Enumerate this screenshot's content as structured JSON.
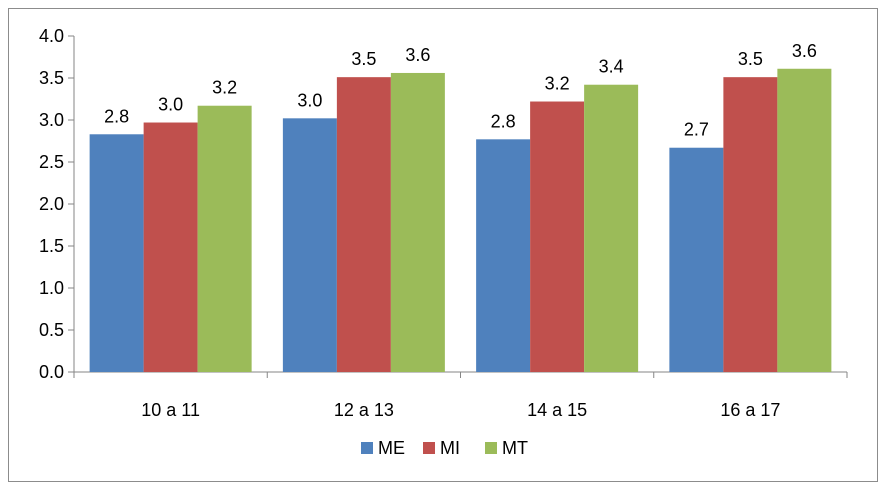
{
  "chart_data": {
    "type": "bar",
    "categories": [
      "10 a 11",
      "12 a 13",
      "14 a 15",
      "16 a 17"
    ],
    "series": [
      {
        "name": "ME",
        "color": "#4F81BD",
        "values": [
          2.83,
          3.02,
          2.77,
          2.67
        ],
        "labels": [
          "2.8",
          "3.0",
          "2.8",
          "2.7"
        ]
      },
      {
        "name": "MI",
        "color": "#C0504D",
        "values": [
          2.97,
          3.51,
          3.22,
          3.51
        ],
        "labels": [
          "3.0",
          "3.5",
          "3.2",
          "3.5"
        ]
      },
      {
        "name": "MT",
        "color": "#9BBB59",
        "values": [
          3.17,
          3.56,
          3.42,
          3.61
        ],
        "labels": [
          "3.2",
          "3.6",
          "3.4",
          "3.6"
        ]
      }
    ],
    "yticks": [
      "0.0",
      "0.5",
      "1.0",
      "1.5",
      "2.0",
      "2.5",
      "3.0",
      "3.5",
      "4.0"
    ],
    "ylim": [
      0,
      4
    ],
    "grid": false,
    "legend_position": "bottom"
  }
}
